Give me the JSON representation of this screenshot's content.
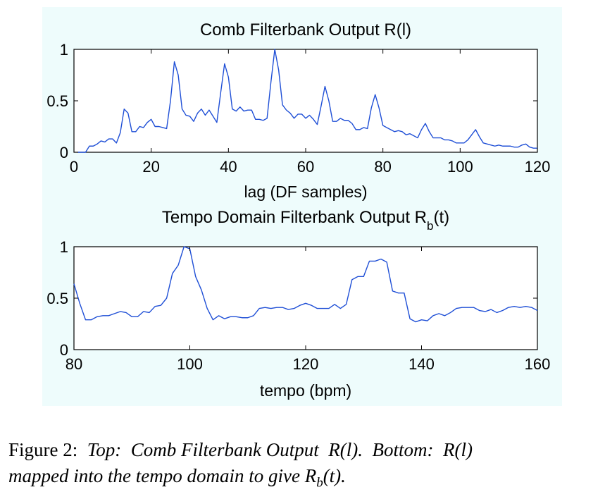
{
  "chart_data": [
    {
      "type": "line",
      "title_main": "Comb Filterbank Output R(l)",
      "xlabel": "lag (DF samples)",
      "ylabel": "",
      "xlim": [
        0,
        120
      ],
      "ylim": [
        0,
        1
      ],
      "xticks": [
        "0",
        "20",
        "40",
        "60",
        "80",
        "100",
        "120"
      ],
      "yticks": [
        "0",
        "0.5",
        "1"
      ],
      "grid": false,
      "color": "#1f4fd6",
      "x_start": 1,
      "x_step": 1,
      "values": [
        0.0,
        0.0,
        0.0,
        0.06,
        0.06,
        0.08,
        0.11,
        0.1,
        0.13,
        0.13,
        0.09,
        0.19,
        0.42,
        0.38,
        0.2,
        0.2,
        0.25,
        0.24,
        0.29,
        0.32,
        0.25,
        0.25,
        0.24,
        0.23,
        0.5,
        0.88,
        0.75,
        0.42,
        0.36,
        0.35,
        0.3,
        0.38,
        0.42,
        0.36,
        0.41,
        0.35,
        0.29,
        0.58,
        0.86,
        0.73,
        0.42,
        0.4,
        0.44,
        0.4,
        0.41,
        0.41,
        0.32,
        0.32,
        0.31,
        0.33,
        0.68,
        1.0,
        0.8,
        0.46,
        0.41,
        0.38,
        0.33,
        0.37,
        0.37,
        0.33,
        0.36,
        0.32,
        0.27,
        0.45,
        0.64,
        0.5,
        0.3,
        0.3,
        0.33,
        0.31,
        0.31,
        0.28,
        0.22,
        0.22,
        0.24,
        0.23,
        0.43,
        0.56,
        0.43,
        0.26,
        0.24,
        0.22,
        0.2,
        0.21,
        0.2,
        0.17,
        0.18,
        0.16,
        0.14,
        0.22,
        0.28,
        0.2,
        0.14,
        0.14,
        0.14,
        0.12,
        0.12,
        0.11,
        0.09,
        0.09,
        0.09,
        0.12,
        0.17,
        0.22,
        0.15,
        0.09,
        0.08,
        0.07,
        0.06,
        0.07,
        0.06,
        0.06,
        0.06,
        0.05,
        0.05,
        0.07,
        0.08,
        0.05,
        0.04,
        0.04
      ]
    },
    {
      "type": "line",
      "title_main": "Tempo Domain Filterbank Output R",
      "title_sub": "b",
      "title_tail": "(t)",
      "xlabel": "tempo (bpm)",
      "ylabel": "",
      "xlim": [
        80,
        160
      ],
      "ylim": [
        0,
        1
      ],
      "xticks": [
        "80",
        "100",
        "120",
        "140",
        "160"
      ],
      "yticks": [
        "0",
        "0.5",
        "1"
      ],
      "grid": false,
      "color": "#1f4fd6",
      "x_start": 80,
      "x_step": 1,
      "values": [
        0.64,
        0.45,
        0.29,
        0.29,
        0.32,
        0.33,
        0.33,
        0.35,
        0.37,
        0.36,
        0.32,
        0.32,
        0.37,
        0.36,
        0.42,
        0.43,
        0.5,
        0.74,
        0.82,
        1.0,
        0.98,
        0.71,
        0.58,
        0.4,
        0.29,
        0.33,
        0.3,
        0.32,
        0.32,
        0.31,
        0.31,
        0.33,
        0.4,
        0.41,
        0.4,
        0.41,
        0.41,
        0.39,
        0.4,
        0.43,
        0.45,
        0.43,
        0.4,
        0.4,
        0.4,
        0.44,
        0.4,
        0.44,
        0.68,
        0.71,
        0.71,
        0.86,
        0.86,
        0.88,
        0.85,
        0.57,
        0.55,
        0.55,
        0.3,
        0.27,
        0.29,
        0.28,
        0.33,
        0.35,
        0.33,
        0.36,
        0.4,
        0.41,
        0.41,
        0.41,
        0.38,
        0.37,
        0.39,
        0.36,
        0.38,
        0.41,
        0.42,
        0.41,
        0.42,
        0.41,
        0.38
      ]
    }
  ],
  "caption": {
    "label": "Figure 2:",
    "top_word": "Top:",
    "top_text": "Comb Filterbank Output",
    "r_l_1": "R(l).",
    "bottom_word": "Bottom:",
    "r_l_2": "R(l)",
    "line2_text": "mapped into the tempo domain to give",
    "rb_main": "R",
    "rb_sub": "b",
    "rb_tail": "(t)."
  }
}
